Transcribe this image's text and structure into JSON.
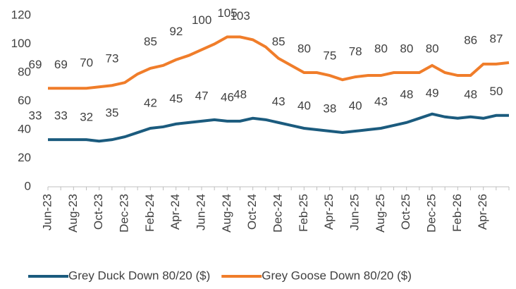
{
  "chart_data": {
    "type": "line",
    "categories": [
      "Jun-23",
      null,
      "Aug-23",
      null,
      "Oct-23",
      null,
      "Dec-23",
      null,
      "Feb-24",
      null,
      "Apr-24",
      null,
      "Jun-24",
      null,
      "Aug-24",
      null,
      "Oct-24",
      null,
      "Dec-24",
      null,
      "Feb-25",
      null,
      "Apr-25",
      null,
      "Jun-25",
      null,
      "Aug-25",
      null,
      "Oct-25",
      null,
      "Dec-25",
      null,
      "Feb-26",
      null,
      "Apr-26",
      null,
      null
    ],
    "series": [
      {
        "name": "Grey Duck Down 80/20 ($)",
        "color": "#1b5b7e",
        "values": [
          33,
          33,
          33,
          33,
          32,
          33,
          35,
          38,
          41,
          42,
          44,
          45,
          46,
          47,
          46,
          46,
          48,
          47,
          45,
          43,
          41,
          40,
          39,
          38,
          39,
          40,
          41,
          43,
          45,
          48,
          51,
          49,
          48,
          49,
          48,
          50,
          50
        ],
        "value_labels": [
          "33",
          null,
          "33",
          null,
          "32",
          null,
          "35",
          null,
          null,
          "42",
          null,
          "45",
          null,
          "47",
          null,
          "46",
          "48",
          null,
          null,
          "43",
          null,
          "40",
          null,
          "38",
          null,
          "40",
          null,
          "43",
          null,
          "48",
          null,
          "49",
          null,
          null,
          "48",
          null,
          "50"
        ]
      },
      {
        "name": "Grey Goose Down 80/20 ($)",
        "color": "#f07d2a",
        "values": [
          69,
          69,
          69,
          69,
          70,
          71,
          73,
          79,
          83,
          85,
          89,
          92,
          96,
          100,
          105,
          105,
          103,
          98,
          90,
          85,
          80,
          80,
          78,
          75,
          77,
          78,
          78,
          80,
          80,
          80,
          85,
          80,
          78,
          78,
          86,
          86,
          87
        ],
        "value_labels": [
          "69",
          null,
          "69",
          null,
          "70",
          null,
          "73",
          null,
          null,
          "85",
          null,
          "92",
          null,
          "100",
          null,
          "105",
          "103",
          null,
          null,
          "85",
          null,
          "80",
          null,
          "75",
          null,
          "78",
          null,
          "80",
          null,
          "80",
          null,
          "80",
          null,
          null,
          "86",
          null,
          "87"
        ]
      }
    ],
    "ylim": [
      0,
      120
    ],
    "yticks": [
      0,
      20,
      40,
      60,
      80,
      100,
      120
    ],
    "legend": "bottom"
  }
}
